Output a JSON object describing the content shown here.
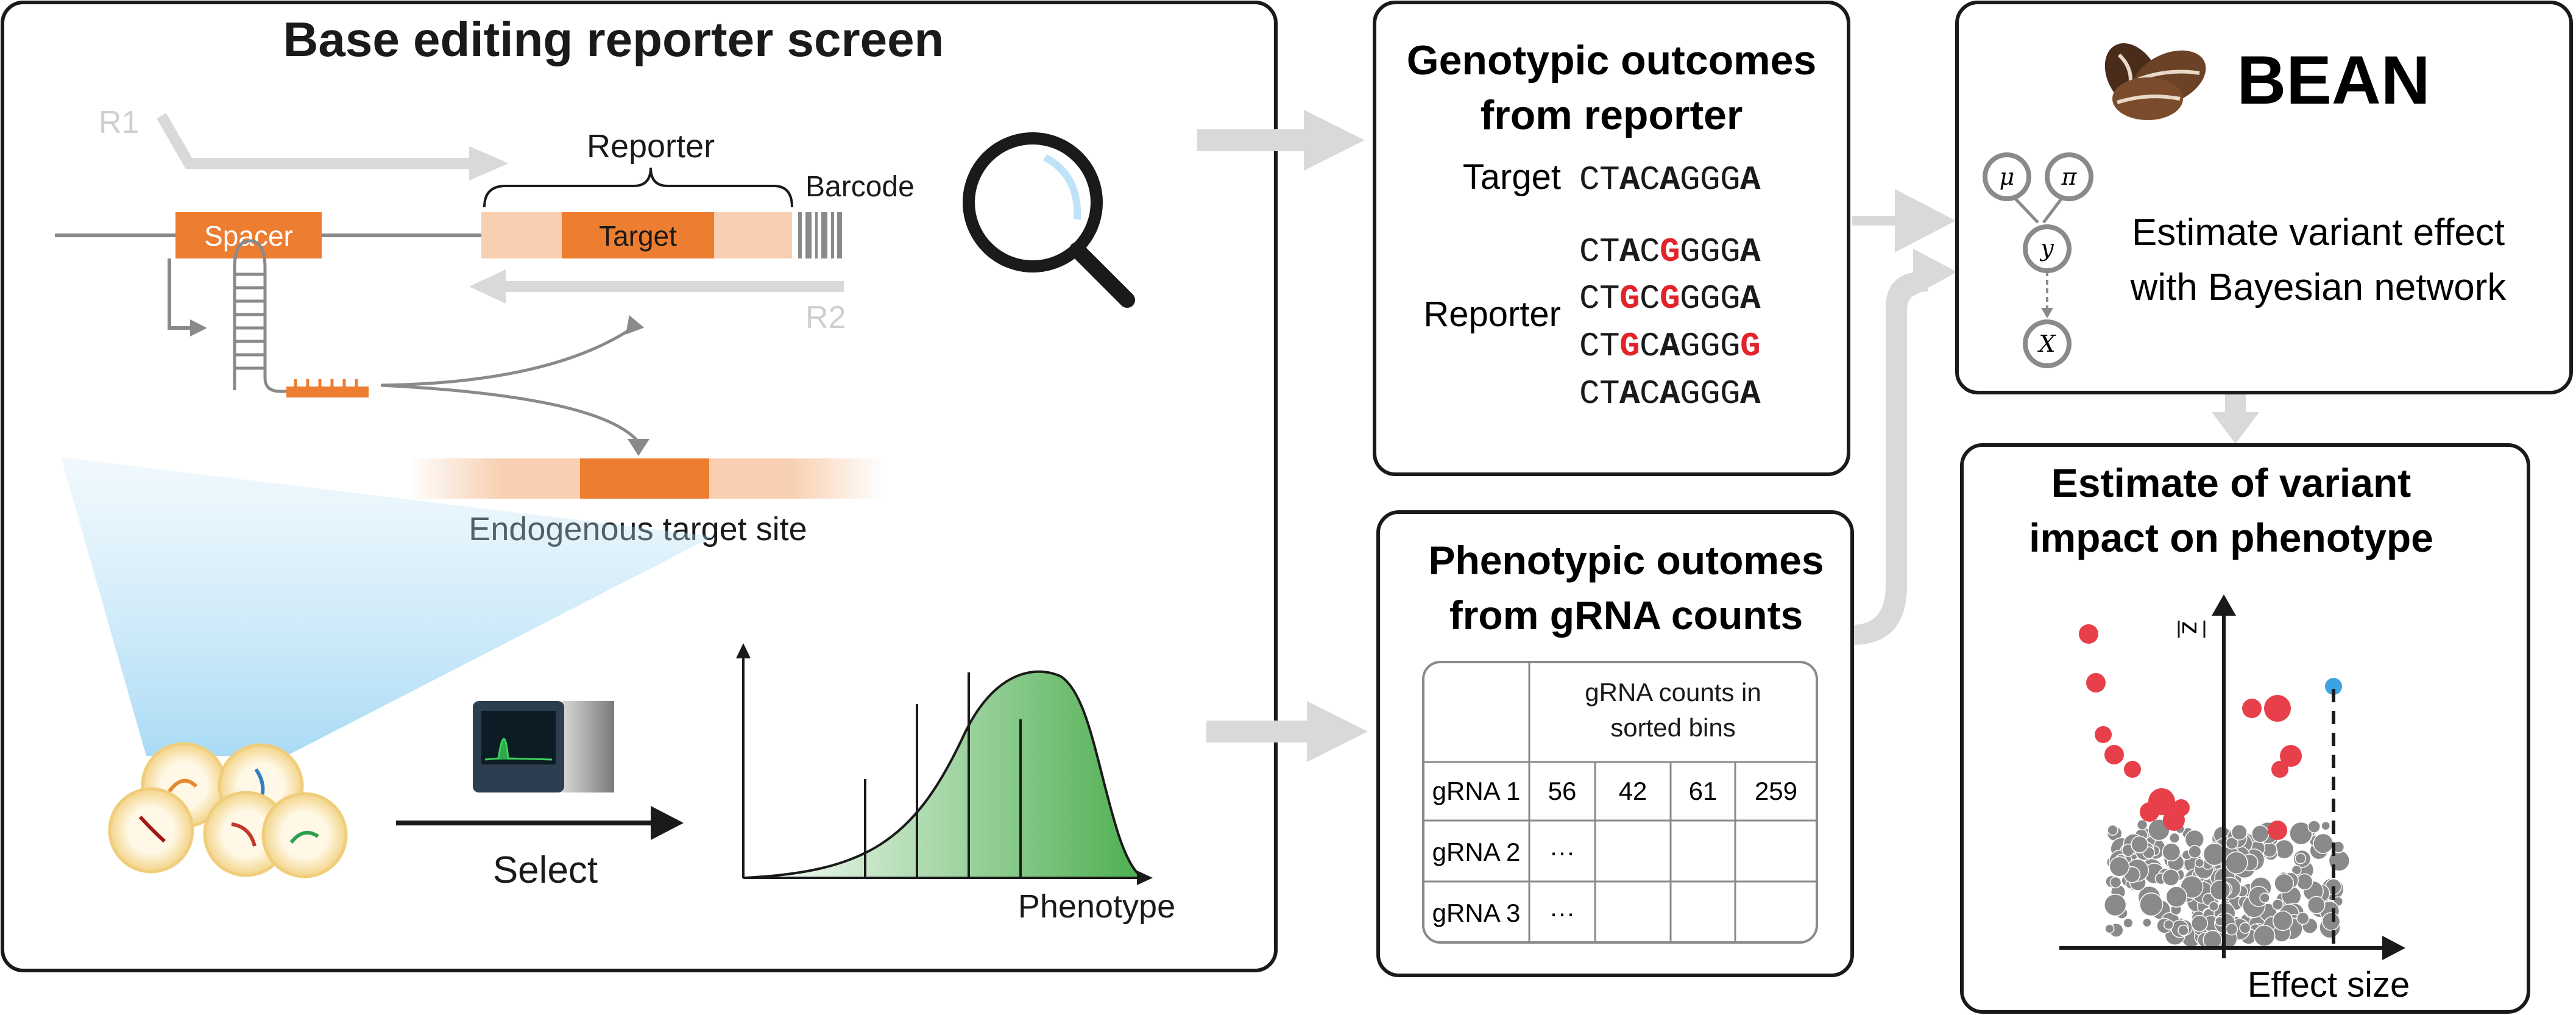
{
  "screen_panel": {
    "title": "Base editing reporter screen",
    "primer_r1": "R1",
    "primer_r2": "R2",
    "reporter_label": "Reporter",
    "barcode_label": "Barcode",
    "spacer_label": "Spacer",
    "target_label": "Target",
    "endogenous_label": "Endogenous target site",
    "select_label": "Select",
    "phenotype_axis_label": "Phenotype"
  },
  "genotype_panel": {
    "title_line1": "Genotypic outcomes",
    "title_line2": "from reporter",
    "target_label": "Target",
    "reporter_label": "Reporter",
    "target_seq": "CTACAGGGA",
    "reporter_seqs": [
      "CTACGGGGA",
      "CTGCGGGGA",
      "CTGCAGGGG",
      "CTACAGGGA"
    ],
    "colors": {
      "edited": "#e2232a",
      "plain": "#1a1a1a"
    }
  },
  "phenotype_panel": {
    "title_line1": "Phenotypic outomes",
    "title_line2": "from gRNA counts",
    "header_line1": "gRNA counts in",
    "header_line2": "sorted bins",
    "rows": [
      {
        "label": "gRNA 1",
        "cells": [
          "56",
          "42",
          "61",
          "259"
        ]
      },
      {
        "label": "gRNA 2",
        "cells": [
          "···",
          "",
          "",
          ""
        ]
      },
      {
        "label": "gRNA 3",
        "cells": [
          "···",
          "",
          "",
          ""
        ]
      }
    ]
  },
  "bean_panel": {
    "title": "BEAN",
    "description_line1": "Estimate variant effect",
    "description_line2": "with Bayesian network",
    "nodes": {
      "mu": "μ",
      "pi": "π",
      "y": "y",
      "x": "X"
    }
  },
  "impact_panel": {
    "title_line1": "Estimate of variant",
    "title_line2": "impact on phenotype",
    "x_axis_label": "Effect size",
    "y_axis_label": "z",
    "colors": {
      "significant": "#e8404a",
      "nonsignificant": "#8a8a8a",
      "highlight": "#3ba3e0"
    }
  },
  "palette": {
    "orange": "#ed7d31",
    "light_orange": "#f8cfb0",
    "arrow_gray": "#d9d9d9",
    "panel_border": "#1a1a1a",
    "green": "#5cb85c"
  }
}
